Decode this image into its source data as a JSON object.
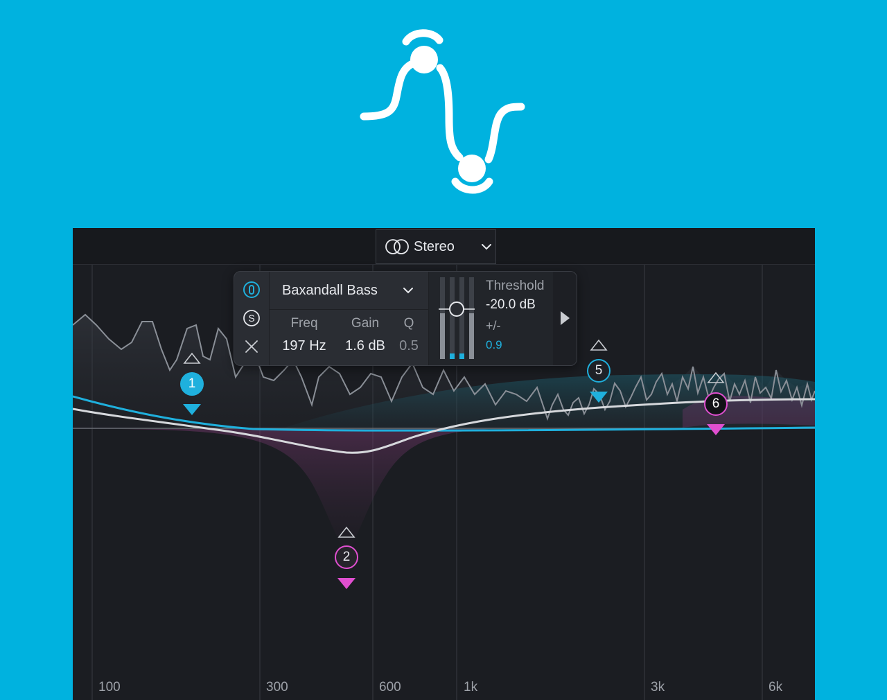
{
  "header": {
    "stereo_label": "Stereo"
  },
  "band_popup": {
    "filter_type": "Baxandall Bass",
    "params": {
      "freq_label": "Freq",
      "freq_value": "197 Hz",
      "gain_label": "Gain",
      "gain_value": "1.6 dB",
      "q_label": "Q",
      "q_value": "0.5"
    },
    "dynamics": {
      "threshold_label": "Threshold",
      "threshold_value": "-20.0 dB",
      "range_label": "+/-",
      "range_value": "0.9"
    },
    "side_buttons": {
      "solo_label": "S"
    }
  },
  "nodes": {
    "n1": "1",
    "n2": "2",
    "n5": "5",
    "n6": "6"
  },
  "freq_axis": [
    "100",
    "300",
    "600",
    "1k",
    "3k",
    "6k"
  ],
  "colors": {
    "background": "#00b2df",
    "panel": "#1b1d22",
    "accent_blue": "#1fb0dd",
    "accent_pink": "#e04fd0"
  },
  "icons": [
    "eq-logo-icon",
    "stereo-icon",
    "chevron-down-icon",
    "power-icon",
    "solo-icon",
    "close-icon",
    "play-arrow-icon"
  ]
}
